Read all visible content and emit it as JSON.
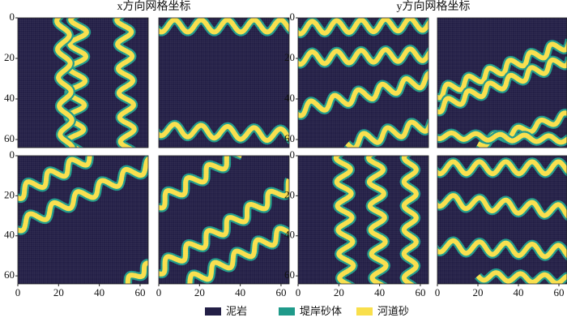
{
  "titles": [
    "x方向网格坐标",
    "y方向网格坐标"
  ],
  "legend": [
    {
      "name": "泥岩",
      "color": "#231f46"
    },
    {
      "name": "堤岸砂体",
      "color": "#1f9a8a"
    },
    {
      "name": "河道砂",
      "color": "#f9df4b"
    }
  ],
  "chart_data": [
    {
      "type": "heatmap",
      "xlim": [
        0,
        64
      ],
      "ylim": [
        64,
        0
      ],
      "yticks": [
        0,
        20,
        40,
        60
      ]
    },
    {
      "type": "heatmap",
      "xlim": [
        0,
        64
      ],
      "ylim": [
        64,
        0
      ]
    },
    {
      "type": "heatmap",
      "xlim": [
        0,
        64
      ],
      "ylim": [
        64,
        0
      ],
      "yticks": [
        0,
        20,
        40,
        60
      ]
    },
    {
      "type": "heatmap",
      "xlim": [
        0,
        64
      ],
      "ylim": [
        64,
        0
      ]
    },
    {
      "type": "heatmap",
      "xlim": [
        0,
        64
      ],
      "ylim": [
        64,
        0
      ],
      "yticks": [
        0,
        20,
        40,
        60
      ],
      "xticks": [
        0,
        20,
        40,
        60
      ]
    },
    {
      "type": "heatmap",
      "xlim": [
        0,
        64
      ],
      "ylim": [
        64,
        0
      ],
      "xticks": [
        0,
        20,
        40,
        60
      ]
    },
    {
      "type": "heatmap",
      "xlim": [
        0,
        64
      ],
      "ylim": [
        64,
        0
      ],
      "yticks": [
        0,
        20,
        40,
        60
      ],
      "xticks": [
        0,
        20,
        40,
        60
      ]
    },
    {
      "type": "heatmap",
      "xlim": [
        0,
        64
      ],
      "ylim": [
        64,
        0
      ],
      "xticks": [
        0,
        20,
        40,
        60
      ]
    }
  ]
}
